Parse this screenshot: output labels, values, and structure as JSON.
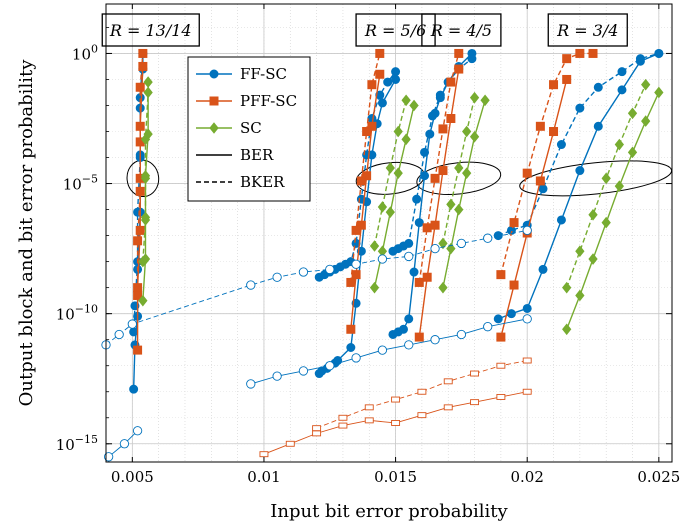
{
  "chart_data": {
    "type": "line",
    "xlabel": "Input bit error probability",
    "ylabel": "Output block and bit error probability",
    "xlim": [
      0.004,
      0.0255
    ],
    "ylim_log10": [
      -15.7,
      1.9
    ],
    "y_scale": "log",
    "grid": true,
    "x_ticks": [
      {
        "value": 0.005,
        "label": "0.005"
      },
      {
        "value": 0.01,
        "label": "0.01"
      },
      {
        "value": 0.015,
        "label": "0.015"
      },
      {
        "value": 0.02,
        "label": "0.02"
      },
      {
        "value": 0.025,
        "label": "0.025"
      }
    ],
    "y_ticks": [
      {
        "exp": 0,
        "label": "10",
        "sup": "0"
      },
      {
        "exp": -5,
        "label": "10",
        "sup": "−5"
      },
      {
        "exp": -10,
        "label": "10",
        "sup": "−10"
      },
      {
        "exp": -15,
        "label": "10",
        "sup": "−15"
      }
    ],
    "legend": {
      "placement": "top-left",
      "entries": [
        {
          "label": "FF-SC",
          "color": "#0072BD",
          "marker": "circle",
          "style": "solid"
        },
        {
          "label": "PFF-SC",
          "color": "#D95319",
          "marker": "square",
          "style": "solid"
        },
        {
          "label": "SC",
          "color": "#77AC30",
          "marker": "diamond",
          "style": "solid"
        },
        {
          "label": "BER",
          "color": "#000000",
          "marker": "none",
          "style": "solid"
        },
        {
          "label": "BKER",
          "color": "#000000",
          "marker": "none",
          "style": "dashed"
        }
      ]
    },
    "rate_labels": [
      {
        "text": "R = 13/14",
        "x": 0.0057
      },
      {
        "text": "R = 5/6",
        "x": 0.015
      },
      {
        "text": "R = 4/5",
        "x": 0.0175
      },
      {
        "text": "R = 3/4",
        "x": 0.0223
      }
    ],
    "ellipses": [
      {
        "cx": 0.0054,
        "cy": -4.8,
        "rx": 0.0006,
        "ry": 0.7
      },
      {
        "cx": 0.0148,
        "cy": -4.8,
        "rx": 0.0013,
        "ry": 0.6
      },
      {
        "cx": 0.0174,
        "cy": -4.8,
        "rx": 0.0016,
        "ry": 0.6
      },
      {
        "cx": 0.0226,
        "cy": -4.8,
        "rx": 0.0029,
        "ry": 0.6
      }
    ],
    "series": [
      {
        "name": "FF-SC",
        "rate": "13/14",
        "metric": "BER",
        "color": "#0072BD",
        "marker": "circle",
        "x": [
          0.00505,
          0.0051,
          0.0052,
          0.0052,
          0.0053,
          0.0053,
          0.0053,
          0.0054,
          0.0054
        ],
        "y": [
          -12.9,
          -11.2,
          -10.1,
          -8.3,
          -6.1,
          -3.9,
          -2.1,
          -0.6,
          0.0
        ]
      },
      {
        "name": "FF-SC",
        "rate": "13/14",
        "metric": "BKER",
        "color": "#0072BD",
        "marker": "circle",
        "x": [
          0.00505,
          0.0051,
          0.0052,
          0.0052,
          0.0053,
          0.0053,
          0.0054
        ],
        "y": [
          -10.7,
          -9.7,
          -8.0,
          -6.1,
          -4.0,
          -1.7,
          0.0
        ]
      },
      {
        "name": "PFF-SC",
        "rate": "13/14",
        "metric": "BER",
        "color": "#D95319",
        "marker": "square",
        "x": [
          0.0052,
          0.0052,
          0.0053,
          0.0053,
          0.0053,
          0.0054
        ],
        "y": [
          -11.4,
          -9.0,
          -6.8,
          -4.8,
          -2.8,
          -0.5
        ]
      },
      {
        "name": "PFF-SC",
        "rate": "13/14",
        "metric": "BKER",
        "color": "#D95319",
        "marker": "square",
        "x": [
          0.0052,
          0.0052,
          0.0053,
          0.0053,
          0.0053,
          0.0054
        ],
        "y": [
          -9.3,
          -7.2,
          -5.3,
          -3.4,
          -1.3,
          0.0
        ]
      },
      {
        "name": "SC",
        "rate": "13/14",
        "metric": "BER",
        "color": "#77AC30",
        "marker": "diamond",
        "x": [
          0.0054,
          0.0055,
          0.0055,
          0.0055,
          0.0056,
          0.0056
        ],
        "y": [
          -9.5,
          -7.9,
          -6.3,
          -4.7,
          -3.1,
          -1.1
        ]
      },
      {
        "name": "SC",
        "rate": "13/14",
        "metric": "BKER",
        "color": "#77AC30",
        "marker": "diamond",
        "x": [
          0.0054,
          0.0055,
          0.0055,
          0.0055,
          0.0056
        ],
        "y": [
          -8.0,
          -6.4,
          -4.8,
          -3.3,
          -1.5
        ]
      },
      {
        "name": "FF-SC",
        "rate": "5/6",
        "metric": "BER",
        "color": "#0072BD",
        "marker": "circle",
        "x": [
          0.0121,
          0.0122,
          0.0124,
          0.0125,
          0.0127,
          0.0128,
          0.0133,
          0.0135,
          0.0137,
          0.0139,
          0.0141,
          0.0143,
          0.0145,
          0.015
        ],
        "y": [
          -12.3,
          -12.2,
          -12.1,
          -12.0,
          -11.9,
          -11.8,
          -11.3,
          -9.6,
          -7.6,
          -5.7,
          -3.9,
          -2.7,
          -1.9,
          -1.0
        ]
      },
      {
        "name": "FF-SC",
        "rate": "5/6",
        "metric": "BKER",
        "color": "#0072BD",
        "marker": "circle",
        "x": [
          0.0121,
          0.0123,
          0.0125,
          0.0127,
          0.0129,
          0.0131,
          0.0133,
          0.0135,
          0.0137,
          0.0139,
          0.0141,
          0.0144,
          0.0147,
          0.015
        ],
        "y": [
          -8.6,
          -8.5,
          -8.4,
          -8.3,
          -8.2,
          -8.1,
          -8.0,
          -7.3,
          -5.6,
          -3.9,
          -2.5,
          -1.6,
          -1.1,
          -0.7
        ]
      },
      {
        "name": "PFF-SC",
        "rate": "5/6",
        "metric": "BER",
        "color": "#D95319",
        "marker": "square",
        "x": [
          0.0133,
          0.0135,
          0.0137,
          0.0139,
          0.0141,
          0.0144
        ],
        "y": [
          -10.6,
          -8.5,
          -6.6,
          -4.7,
          -2.8,
          -0.8
        ]
      },
      {
        "name": "PFF-SC",
        "rate": "5/6",
        "metric": "BKER",
        "color": "#D95319",
        "marker": "square",
        "x": [
          0.0133,
          0.0135,
          0.0137,
          0.0139,
          0.0141,
          0.0144
        ],
        "y": [
          -8.8,
          -6.8,
          -4.9,
          -3.0,
          -1.2,
          0.0
        ]
      },
      {
        "name": "SC",
        "rate": "5/6",
        "metric": "BER",
        "color": "#77AC30",
        "marker": "diamond",
        "x": [
          0.0142,
          0.0145,
          0.0148,
          0.0151,
          0.0154,
          0.0157
        ],
        "y": [
          -9.0,
          -7.6,
          -6.1,
          -4.6,
          -3.3,
          -2.0
        ]
      },
      {
        "name": "SC",
        "rate": "5/6",
        "metric": "BKER",
        "color": "#77AC30",
        "marker": "diamond",
        "x": [
          0.0142,
          0.0145,
          0.0148,
          0.0151,
          0.0154
        ],
        "y": [
          -7.4,
          -5.9,
          -4.4,
          -3.0,
          -1.8
        ]
      },
      {
        "name": "FF-SC",
        "rate": "4/5",
        "metric": "BER",
        "color": "#0072BD",
        "marker": "circle",
        "x": [
          0.0149,
          0.0151,
          0.0153,
          0.0155,
          0.0157,
          0.0159,
          0.0161,
          0.0163,
          0.0165,
          0.0167,
          0.017,
          0.0174,
          0.0179
        ],
        "y": [
          -10.8,
          -10.7,
          -10.6,
          -10.2,
          -8.4,
          -6.5,
          -4.7,
          -3.1,
          -2.3,
          -1.7,
          -1.1,
          -0.5,
          0.0
        ]
      },
      {
        "name": "FF-SC",
        "rate": "4/5",
        "metric": "BKER",
        "color": "#0072BD",
        "marker": "circle",
        "x": [
          0.0149,
          0.0151,
          0.0153,
          0.0155,
          0.0158,
          0.0161,
          0.0164,
          0.0167,
          0.017,
          0.0174,
          0.0179
        ],
        "y": [
          -7.6,
          -7.5,
          -7.4,
          -7.3,
          -5.6,
          -3.8,
          -2.4,
          -1.6,
          -1.1,
          -0.6,
          -0.2
        ]
      },
      {
        "name": "PFF-SC",
        "rate": "4/5",
        "metric": "BER",
        "color": "#D95319",
        "marker": "square",
        "x": [
          0.0159,
          0.0162,
          0.0165,
          0.0168,
          0.0171,
          0.0174
        ],
        "y": [
          -10.9,
          -8.6,
          -6.6,
          -4.5,
          -2.5,
          -0.6
        ]
      },
      {
        "name": "PFF-SC",
        "rate": "4/5",
        "metric": "BKER",
        "color": "#D95319",
        "marker": "square",
        "x": [
          0.0159,
          0.0162,
          0.0165,
          0.0168,
          0.0171,
          0.0174
        ],
        "y": [
          -8.8,
          -6.7,
          -4.8,
          -2.9,
          -1.1,
          0.0
        ]
      },
      {
        "name": "SC",
        "rate": "4/5",
        "metric": "BER",
        "color": "#77AC30",
        "marker": "diamond",
        "x": [
          0.0168,
          0.0171,
          0.0174,
          0.0177,
          0.018,
          0.0184
        ],
        "y": [
          -9.0,
          -7.5,
          -6.0,
          -4.6,
          -3.2,
          -1.8
        ]
      },
      {
        "name": "SC",
        "rate": "4/5",
        "metric": "BKER",
        "color": "#77AC30",
        "marker": "diamond",
        "x": [
          0.0168,
          0.0171,
          0.0174,
          0.0177,
          0.018
        ],
        "y": [
          -7.3,
          -5.8,
          -4.4,
          -3.0,
          -1.7
        ]
      },
      {
        "name": "FF-SC",
        "rate": "3/4",
        "metric": "BER",
        "color": "#0072BD",
        "marker": "circle",
        "x": [
          0.0189,
          0.0194,
          0.02,
          0.0206,
          0.0213,
          0.022,
          0.0227,
          0.0236,
          0.0243,
          0.025
        ],
        "y": [
          -10.2,
          -10.0,
          -9.8,
          -8.3,
          -6.4,
          -4.5,
          -2.8,
          -1.4,
          -0.3,
          0.0
        ]
      },
      {
        "name": "FF-SC",
        "rate": "3/4",
        "metric": "BKER",
        "color": "#0072BD",
        "marker": "circle",
        "x": [
          0.0189,
          0.0194,
          0.02,
          0.0206,
          0.0213,
          0.022,
          0.0227,
          0.0236,
          0.0243,
          0.025
        ],
        "y": [
          -7.0,
          -6.8,
          -6.6,
          -5.2,
          -3.5,
          -2.1,
          -1.3,
          -0.7,
          -0.2,
          0.0
        ]
      },
      {
        "name": "PFF-SC",
        "rate": "3/4",
        "metric": "BER",
        "color": "#D95319",
        "marker": "square",
        "x": [
          0.019,
          0.0195,
          0.02,
          0.0205,
          0.021,
          0.0215
        ],
        "y": [
          -10.9,
          -8.9,
          -6.9,
          -4.9,
          -3.0,
          -1.0
        ]
      },
      {
        "name": "PFF-SC",
        "rate": "3/4",
        "metric": "BKER",
        "color": "#D95319",
        "marker": "square",
        "x": [
          0.019,
          0.0195,
          0.02,
          0.0205,
          0.021,
          0.0215,
          0.022,
          0.0225
        ],
        "y": [
          -8.5,
          -6.5,
          -4.6,
          -2.8,
          -1.2,
          -0.2,
          0.0,
          0.0
        ]
      },
      {
        "name": "SC",
        "rate": "3/4",
        "metric": "BER",
        "color": "#77AC30",
        "marker": "diamond",
        "x": [
          0.0215,
          0.022,
          0.0225,
          0.023,
          0.0235,
          0.024,
          0.0245,
          0.025
        ],
        "y": [
          -10.6,
          -9.3,
          -7.9,
          -6.5,
          -5.1,
          -3.8,
          -2.6,
          -1.5
        ]
      },
      {
        "name": "SC",
        "rate": "3/4",
        "metric": "BKER",
        "color": "#77AC30",
        "marker": "diamond",
        "x": [
          0.0215,
          0.022,
          0.0225,
          0.023,
          0.0235,
          0.024,
          0.0245
        ],
        "y": [
          -9.0,
          -7.6,
          -6.2,
          -4.8,
          -3.5,
          -2.3,
          -1.2
        ]
      },
      {
        "name": "FF-SC",
        "rate": "13/14",
        "metric": "BER (estimate)",
        "color": "#0072BD",
        "marker": "open-circle",
        "x": [
          0.0041,
          0.0047,
          0.0052
        ],
        "y": [
          -15.5,
          -15.0,
          -14.5
        ]
      },
      {
        "name": "FF-SC",
        "rate": "all",
        "metric": "BER (estimate)",
        "color": "#0072BD",
        "marker": "open-circle",
        "x": [
          0.0095,
          0.0105,
          0.0115,
          0.0125,
          0.0135,
          0.0145,
          0.0155,
          0.0165,
          0.0175,
          0.0185,
          0.02
        ],
        "y": [
          -12.7,
          -12.4,
          -12.2,
          -12.0,
          -11.7,
          -11.4,
          -11.2,
          -11.0,
          -10.8,
          -10.5,
          -10.2
        ]
      },
      {
        "name": "FF-SC",
        "rate": "all",
        "metric": "BKER (estimate)",
        "color": "#0072BD",
        "marker": "open-circle",
        "x": [
          0.004,
          0.0045,
          0.005,
          0.0095,
          0.0105,
          0.0115,
          0.0125,
          0.0135,
          0.0145,
          0.0155,
          0.0165,
          0.0175,
          0.0185,
          0.02
        ],
        "y": [
          -11.2,
          -10.8,
          -10.4,
          -8.9,
          -8.6,
          -8.4,
          -8.3,
          -8.1,
          -7.9,
          -7.8,
          -7.5,
          -7.3,
          -7.1,
          -6.8
        ]
      },
      {
        "name": "PFF-SC",
        "rate": "all",
        "metric": "BER (estimate)",
        "color": "#D95319",
        "marker": "open-square",
        "x": [
          0.01,
          0.011,
          0.012,
          0.013,
          0.014,
          0.015,
          0.016,
          0.017,
          0.018,
          0.019,
          0.02
        ],
        "y": [
          -15.4,
          -15.0,
          -14.6,
          -14.3,
          -14.1,
          -14.2,
          -13.9,
          -13.6,
          -13.4,
          -13.2,
          -13.0
        ]
      },
      {
        "name": "PFF-SC",
        "rate": "all",
        "metric": "BKER (estimate)",
        "color": "#D95319",
        "marker": "open-square",
        "x": [
          0.012,
          0.013,
          0.014,
          0.015,
          0.016,
          0.017,
          0.018,
          0.019,
          0.02
        ],
        "y": [
          -14.4,
          -14.0,
          -13.6,
          -13.3,
          -13.0,
          -12.6,
          -12.3,
          -12.0,
          -11.8
        ]
      }
    ]
  }
}
